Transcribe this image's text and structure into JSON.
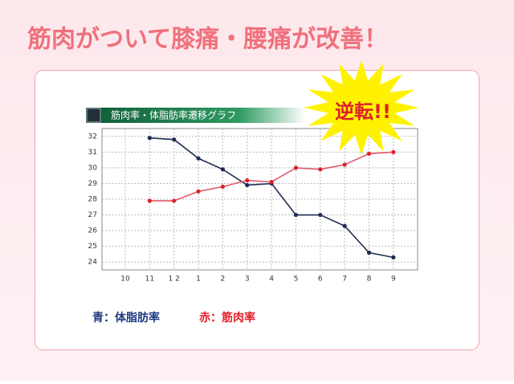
{
  "headline": "筋肉がついて膝痛・腰痛が改善！",
  "burst_text": "逆転!!",
  "chart_data": {
    "type": "line",
    "title": "筋肉率・体脂肪率遷移グラフ",
    "categories": [
      "10",
      "11",
      "1 2",
      "1",
      "2",
      "3",
      "4",
      "5",
      "6",
      "7",
      "8",
      "9"
    ],
    "series": [
      {
        "name": "青：体脂肪率",
        "color": "#1f2d50",
        "values": [
          null,
          31.9,
          31.8,
          30.6,
          29.9,
          28.9,
          29.0,
          27.0,
          27.0,
          26.3,
          24.6,
          24.3
        ]
      },
      {
        "name": "赤：筋肉率",
        "color": "#e0202a",
        "values": [
          null,
          27.9,
          27.9,
          28.5,
          28.8,
          29.2,
          29.1,
          30.0,
          29.9,
          30.2,
          30.9,
          31.0
        ]
      }
    ],
    "ylim": [
      23.5,
      32.5
    ],
    "yticks": [
      24,
      25,
      26,
      27,
      28,
      29,
      30,
      31,
      32
    ],
    "grid": true
  }
}
